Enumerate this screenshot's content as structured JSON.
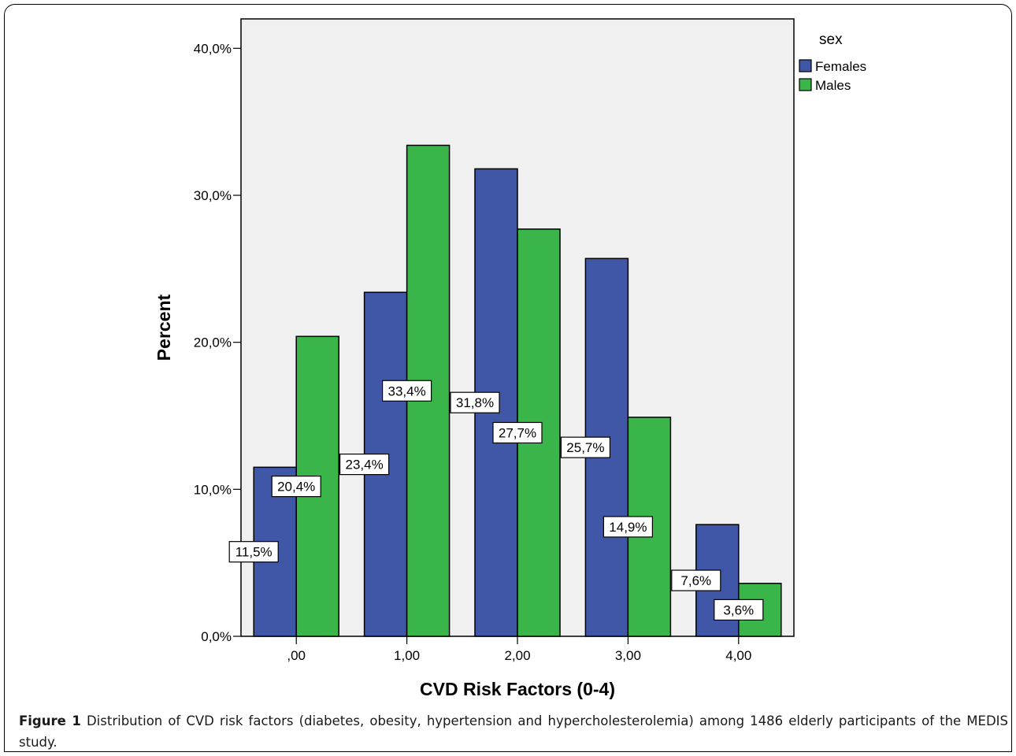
{
  "chart_data": {
    "type": "bar",
    "xlabel": "CVD Risk Factors (0-4)",
    "ylabel": "Percent",
    "categories": [
      ",00",
      "1,00",
      "2,00",
      "3,00",
      "4,00"
    ],
    "series": [
      {
        "name": "Females",
        "color": "#3f57a6",
        "values": [
          11.5,
          23.4,
          31.8,
          25.7,
          7.6
        ],
        "labels": [
          "11,5%",
          "23,4%",
          "31,8%",
          "25,7%",
          "7,6%"
        ]
      },
      {
        "name": "Males",
        "color": "#3ab54a",
        "values": [
          20.4,
          33.4,
          27.7,
          14.9,
          3.6
        ],
        "labels": [
          "20,4%",
          "33,4%",
          "27,7%",
          "14,9%",
          "3,6%"
        ]
      }
    ],
    "yticks": [
      0,
      10,
      20,
      30,
      40
    ],
    "ytick_labels": [
      "0,0%",
      "10,0%",
      "20,0%",
      "30,0%",
      "40,0%"
    ],
    "ylim": [
      0,
      42
    ],
    "legend_title": "sex",
    "legend_position": "top-right",
    "plot_background": "#f0f0f0",
    "grid": false
  },
  "caption": {
    "label": "Figure 1",
    "text": " Distribution of CVD risk factors (diabetes, obesity, hypertension and hypercholesterolemia) among 1486 elderly participants of the MEDIS study."
  }
}
